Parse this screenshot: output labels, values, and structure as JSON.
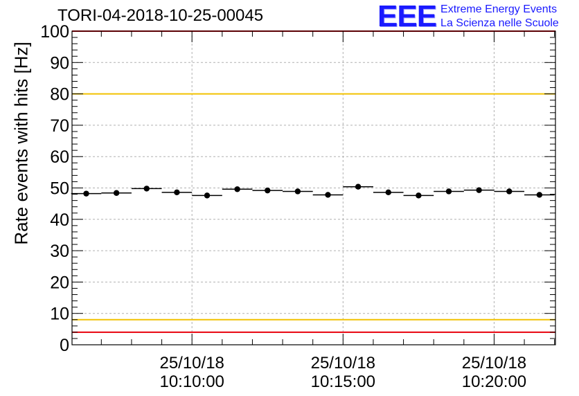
{
  "header": {
    "title": "TORI-04-2018-10-25-00045"
  },
  "logo": {
    "mark": "EEE",
    "line1": "Extreme Energy Events",
    "line2": "La Scienza nelle Scuole"
  },
  "colors": {
    "threshold_yellow": "#f2c200",
    "threshold_red": "#e8000b",
    "logo_blue": "#1a1aff",
    "markers": "#000000"
  },
  "chart_data": {
    "type": "scatter",
    "title": "TORI-04-2018-10-25-00045",
    "xlabel": "",
    "ylabel": "Rate events with hits [Hz]",
    "ylim": [
      0,
      100
    ],
    "yticks": [
      0,
      10,
      20,
      30,
      40,
      50,
      60,
      70,
      80,
      90,
      100
    ],
    "xlim_minutes": [
      -3.97,
      12.03
    ],
    "x_tick_positions_minutes": [
      0,
      5,
      10
    ],
    "x_ticks": [
      {
        "date": "25/10/18",
        "time": "10:10:00"
      },
      {
        "date": "25/10/18",
        "time": "10:15:00"
      },
      {
        "date": "25/10/18",
        "time": "10:20:00"
      }
    ],
    "bin_width_minutes": 1,
    "x_minutes": [
      -3.5,
      -2.5,
      -1.5,
      -0.5,
      0.5,
      1.5,
      2.5,
      3.5,
      4.5,
      5.5,
      6.5,
      7.5,
      8.5,
      9.5,
      10.5,
      11.5
    ],
    "values": [
      48.2,
      48.4,
      49.8,
      48.6,
      47.6,
      49.6,
      49.2,
      48.9,
      47.8,
      50.4,
      48.6,
      47.6,
      48.9,
      49.3,
      48.9,
      47.8
    ],
    "thresholds": [
      {
        "value": 80,
        "color": "#f2c200"
      },
      {
        "value": 8,
        "color": "#f2c200"
      },
      {
        "value": 4,
        "color": "#e8000b"
      },
      {
        "value": 100,
        "color": "#e8000b"
      }
    ],
    "grid": true
  }
}
